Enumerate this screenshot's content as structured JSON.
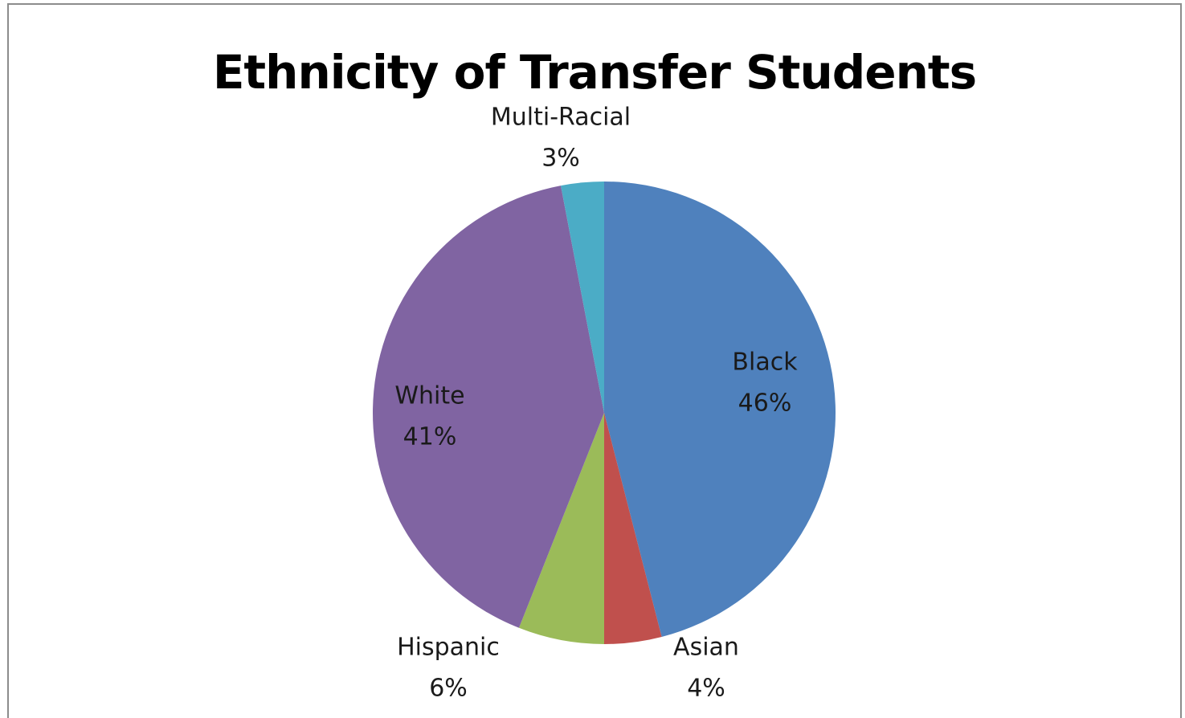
{
  "chart_data": {
    "type": "pie",
    "title": "Ethnicity of Transfer Students",
    "slices": [
      {
        "name": "Black",
        "value": 46,
        "label": "46%",
        "color": "#4f81bd"
      },
      {
        "name": "Asian",
        "value": 4,
        "label": "4%",
        "color": "#c0504d"
      },
      {
        "name": "Hispanic",
        "value": 6,
        "label": "6%",
        "color": "#9bbb59"
      },
      {
        "name": "White",
        "value": 41,
        "label": "41%",
        "color": "#8064a2"
      },
      {
        "name": "Multi-Racial",
        "value": 3,
        "label": "3%",
        "color": "#4bacc6"
      }
    ],
    "start_angle": "12 o'clock",
    "direction": "clockwise",
    "legend": "none",
    "data_labels": "category name and percentage"
  }
}
